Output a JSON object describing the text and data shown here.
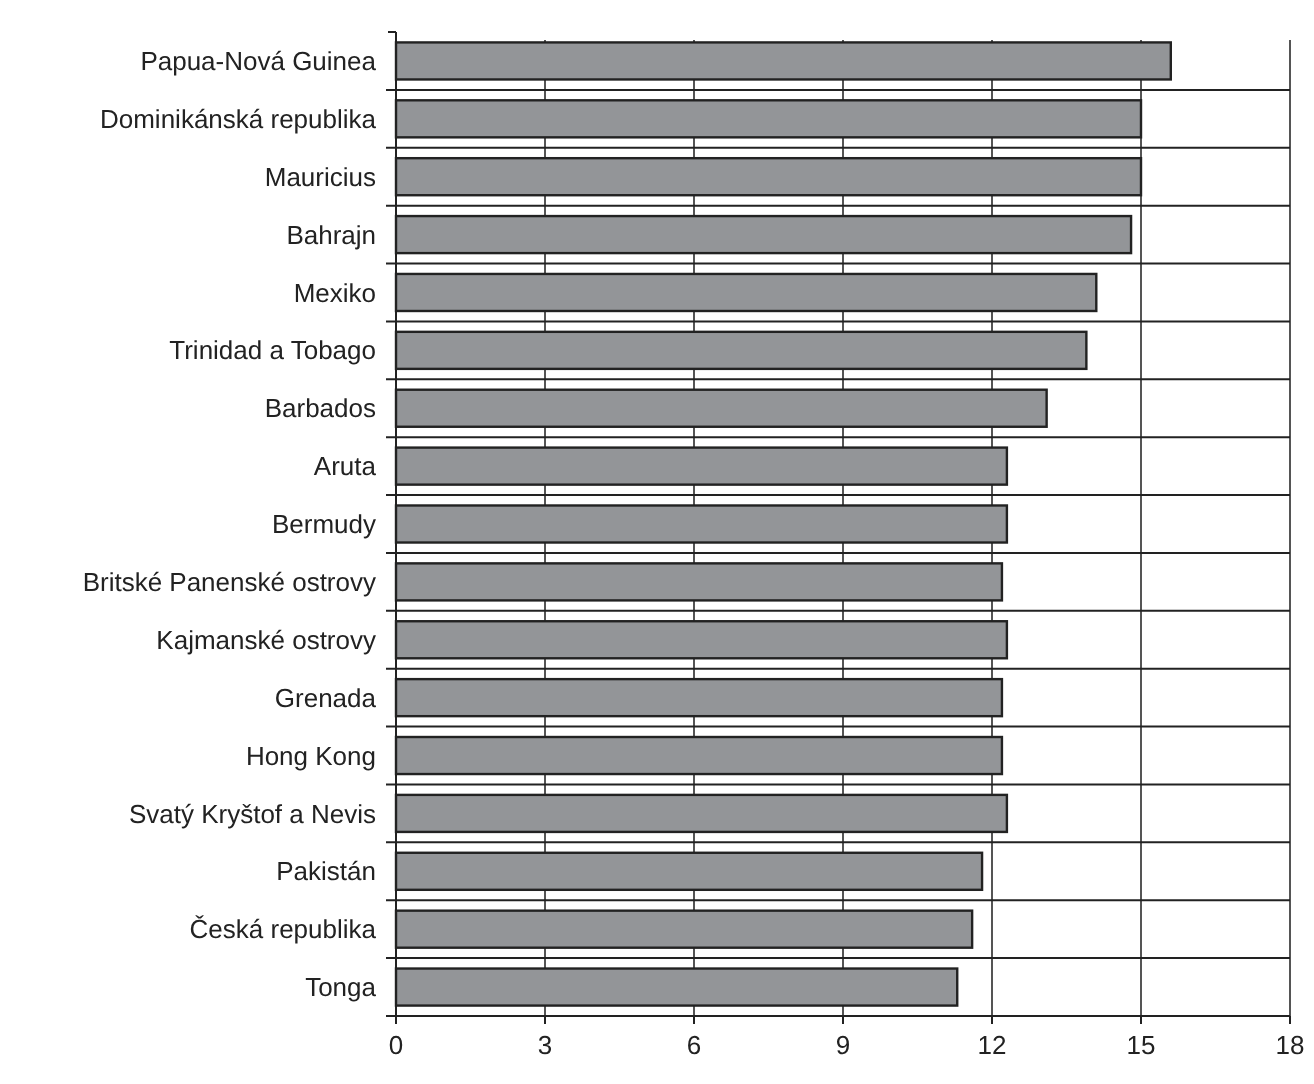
{
  "chart_data": {
    "type": "bar",
    "orientation": "horizontal",
    "categories": [
      "Papua-Nová Guinea",
      "Dominikánská republika",
      "Mauricius",
      "Bahrajn",
      "Mexiko",
      "Trinidad a Tobago",
      "Barbados",
      "Aruta",
      "Bermudy",
      "Britské Panenské ostrovy",
      "Kajmanské ostrovy",
      "Grenada",
      "Hong Kong",
      "Svatý Kryštof a Nevis",
      "Pakistán",
      "Česká republika",
      "Tonga"
    ],
    "values": [
      15.6,
      15.0,
      15.0,
      14.8,
      14.1,
      13.9,
      13.1,
      12.3,
      12.3,
      12.2,
      12.3,
      12.2,
      12.2,
      12.3,
      11.8,
      11.6,
      11.3
    ],
    "color": "#939598",
    "xlim": [
      0,
      18
    ],
    "xticks": [
      0,
      3,
      6,
      9,
      12,
      15,
      18
    ],
    "grid": true
  }
}
